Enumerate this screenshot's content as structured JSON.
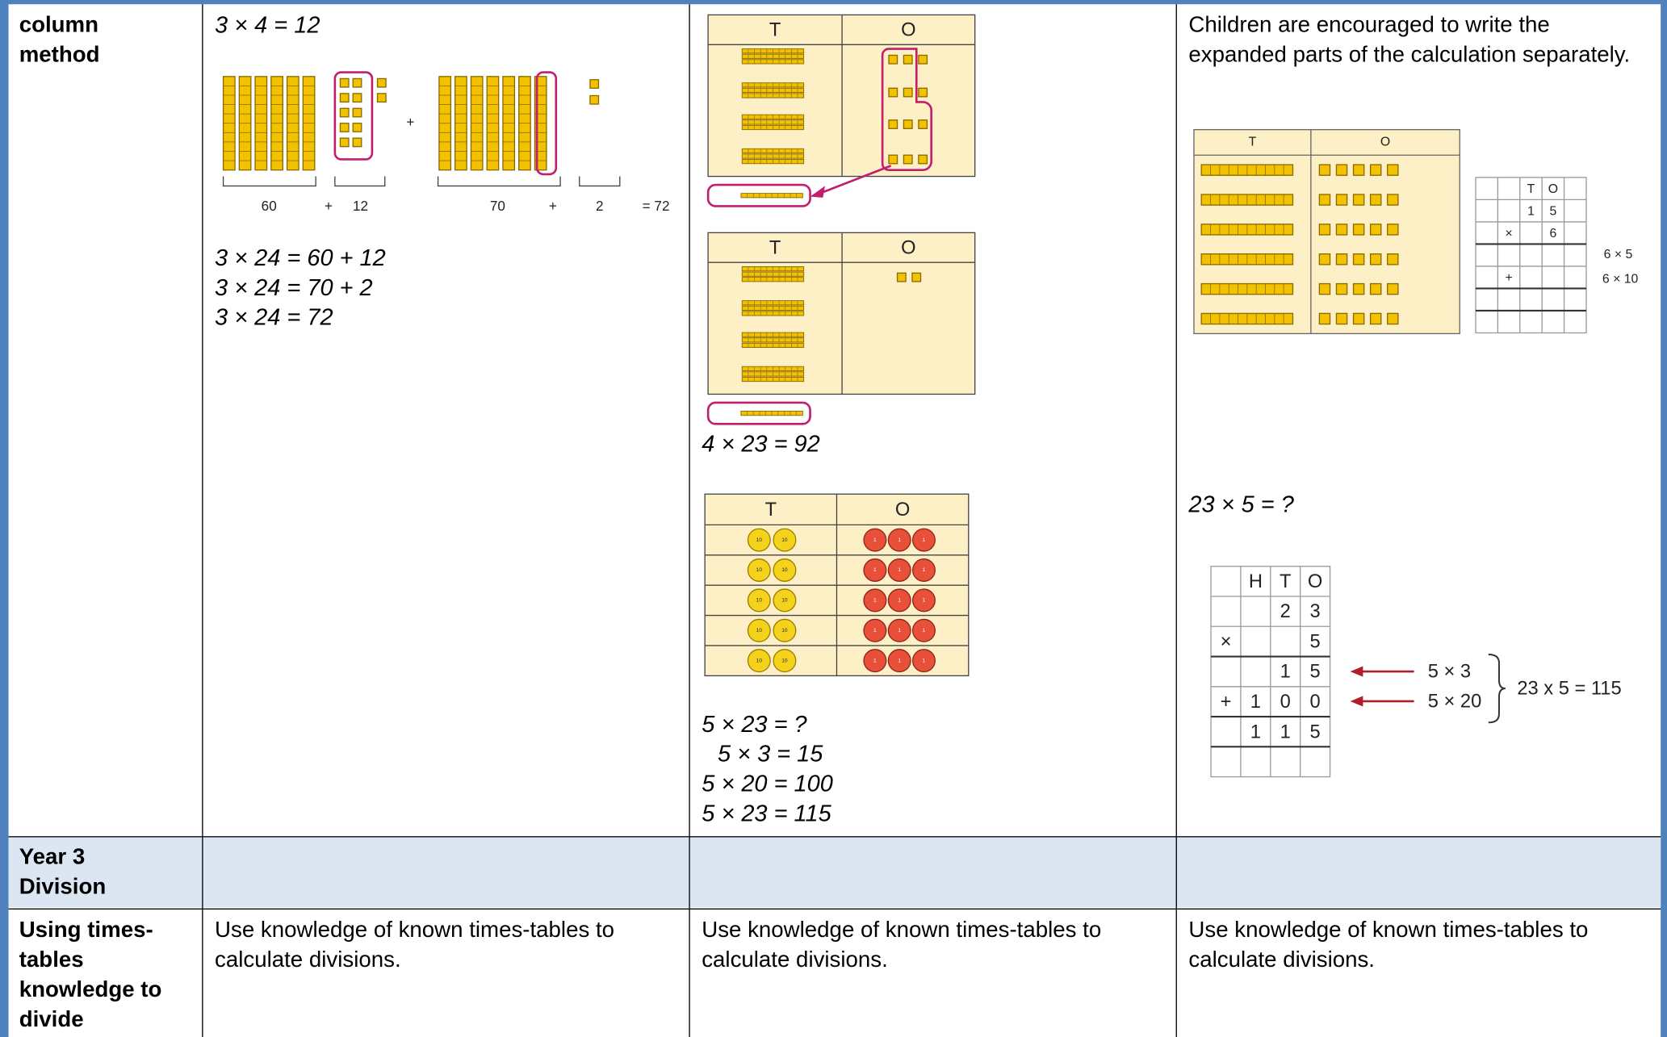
{
  "rows": [
    {
      "label": "column method",
      "cells": [
        {
          "heading": "3 × 4 = 12",
          "diagram_labels": [
            "60",
            "+",
            "12",
            "+",
            "70",
            "+",
            "2",
            "= 72"
          ],
          "equations": [
            "3 × 24 = 60 + 12",
            "3 × 24 = 70 + 2",
            "3 × 24 = 72"
          ]
        },
        {
          "place_value_tables": [
            {
              "headers": [
                "T",
                "O"
              ]
            },
            {
              "headers": [
                "T",
                "O"
              ]
            },
            {
              "headers": [
                "T",
                "O"
              ],
              "counter_labels": [
                "10",
                "1"
              ]
            }
          ],
          "caption": "4 × 23 = 92",
          "equations": [
            "5 × 23 = ?",
            "5 × 3 = 15",
            "5 × 20 = 100",
            "5 × 23 = 115"
          ]
        },
        {
          "text": "Children are encouraged to write the expanded parts of the calculation separately.",
          "place_value_headers": [
            "T",
            "O"
          ],
          "small_grid": [
            [
              null,
              null,
              "T",
              "O",
              null
            ],
            [
              null,
              null,
              "1",
              "5",
              null
            ],
            [
              null,
              "×",
              null,
              "6",
              null
            ],
            [
              null,
              null,
              null,
              null,
              null
            ],
            [
              null,
              "+",
              null,
              null,
              null
            ],
            [
              null,
              null,
              null,
              null,
              null
            ],
            [
              null,
              null,
              null,
              null,
              null
            ]
          ],
          "small_grid_notes": [
            "6 × 5",
            "6 × 10"
          ],
          "question": "23 × 5 = ?",
          "hto_grid": [
            [
              null,
              "H",
              "T",
              "O"
            ],
            [
              null,
              null,
              "2",
              "3"
            ],
            [
              "×",
              null,
              null,
              "5"
            ],
            [
              null,
              null,
              "1",
              "5"
            ],
            [
              "+",
              "1",
              "0",
              "0"
            ],
            [
              null,
              "1",
              "1",
              "5"
            ],
            [
              null,
              null,
              null,
              null
            ]
          ],
          "arrow_labels": [
            "5 × 3",
            "5 × 20"
          ],
          "result": "23 x 5 = 115"
        }
      ]
    },
    {
      "label": "Year 3 Division",
      "cells": []
    },
    {
      "label": "Using times-tables knowledge to divide",
      "cells": [
        "Use knowledge of known times-tables to calculate divisions.",
        "Use knowledge of known times-tables to calculate divisions.",
        "Use knowledge of known times-tables to calculate divisions."
      ]
    }
  ]
}
